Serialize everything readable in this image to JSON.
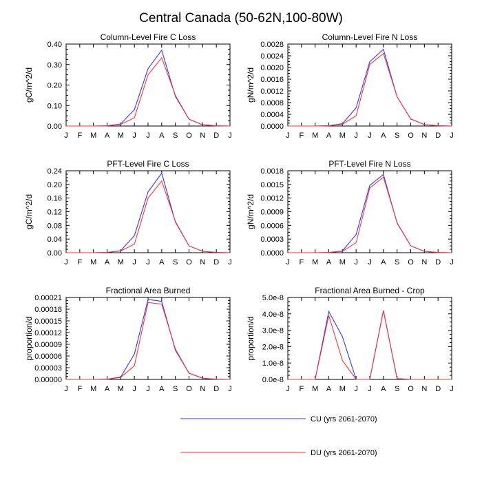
{
  "figure": {
    "title": "Central Canada (50-62N,100-80W)"
  },
  "legend": {
    "entries": [
      {
        "label": "CU (yrs 2061-2070)",
        "color": "#3333ff"
      },
      {
        "label": "DU (yrs 2061-2070)",
        "color": "#ff3333"
      }
    ]
  },
  "chart_data": [
    {
      "type": "line",
      "title": "Column-Level Fire C Loss",
      "ylabel": "gC/m^2/d",
      "xticks": [
        "J",
        "F",
        "M",
        "A",
        "M",
        "J",
        "J",
        "A",
        "S",
        "O",
        "N",
        "D",
        "J"
      ],
      "ylim": [
        0,
        0.4
      ],
      "yticks": [
        "0.00",
        "0.10",
        "0.20",
        "0.30",
        "0.40"
      ],
      "series": [
        {
          "name": "CU (yrs 2061-2070)",
          "color": "#3333ff",
          "values": [
            0,
            0,
            0,
            0.001,
            0.01,
            0.08,
            0.28,
            0.37,
            0.145,
            0.033,
            0.006,
            0.001,
            0
          ]
        },
        {
          "name": "DU (yrs 2061-2070)",
          "color": "#ff3333",
          "values": [
            0,
            0,
            0,
            0.001,
            0.008,
            0.04,
            0.25,
            0.333,
            0.15,
            0.033,
            0.006,
            0.001,
            0
          ]
        }
      ]
    },
    {
      "type": "line",
      "title": "Column-Level Fire N Loss",
      "ylabel": "gN/m^2/d",
      "xticks": [
        "J",
        "F",
        "M",
        "A",
        "M",
        "J",
        "J",
        "A",
        "S",
        "O",
        "N",
        "D",
        "J"
      ],
      "ylim": [
        0,
        0.0028
      ],
      "yticks": [
        "0.0000",
        "0.0004",
        "0.0008",
        "0.0012",
        "0.0016",
        "0.0020",
        "0.0024",
        "0.0028"
      ],
      "series": [
        {
          "name": "CU (yrs 2061-2070)",
          "color": "#3333ff",
          "values": [
            0,
            0,
            0,
            1e-05,
            8e-05,
            0.00062,
            0.0022,
            0.00262,
            0.001,
            0.00024,
            5e-05,
            1e-05,
            0
          ]
        },
        {
          "name": "DU (yrs 2061-2070)",
          "color": "#ff3333",
          "values": [
            0,
            0,
            0,
            1e-05,
            6e-05,
            0.00035,
            0.0021,
            0.00248,
            0.001,
            0.00024,
            5e-05,
            1e-05,
            0
          ]
        }
      ]
    },
    {
      "type": "line",
      "title": "PFT-Level Fire C Loss",
      "ylabel": "gC/m^2/d",
      "xticks": [
        "J",
        "F",
        "M",
        "A",
        "M",
        "J",
        "J",
        "A",
        "S",
        "O",
        "N",
        "D",
        "J"
      ],
      "ylim": [
        0,
        0.24
      ],
      "yticks": [
        "0.00",
        "0.04",
        "0.08",
        "0.12",
        "0.16",
        "0.20",
        "0.24"
      ],
      "series": [
        {
          "name": "CU (yrs 2061-2070)",
          "color": "#3333ff",
          "values": [
            0,
            0,
            0,
            0.001,
            0.006,
            0.05,
            0.178,
            0.233,
            0.09,
            0.02,
            0.004,
            0.001,
            0
          ]
        },
        {
          "name": "DU (yrs 2061-2070)",
          "color": "#ff3333",
          "values": [
            0,
            0,
            0,
            0.001,
            0.005,
            0.025,
            0.16,
            0.21,
            0.092,
            0.02,
            0.004,
            0.001,
            0
          ]
        }
      ]
    },
    {
      "type": "line",
      "title": "PFT-Level Fire N Loss",
      "ylabel": "gN/m^2/d",
      "xticks": [
        "J",
        "F",
        "M",
        "A",
        "M",
        "J",
        "J",
        "A",
        "S",
        "O",
        "N",
        "D",
        "J"
      ],
      "ylim": [
        0,
        0.0018
      ],
      "yticks": [
        "0.0000",
        "0.0003",
        "0.0006",
        "0.0009",
        "0.0012",
        "0.0015",
        "0.0018"
      ],
      "series": [
        {
          "name": "CU (yrs 2061-2070)",
          "color": "#3333ff",
          "values": [
            0,
            0,
            0,
            5e-06,
            4e-05,
            0.0004,
            0.00148,
            0.00172,
            0.00065,
            0.00015,
            3e-05,
            5e-06,
            0
          ]
        },
        {
          "name": "DU (yrs 2061-2070)",
          "color": "#ff3333",
          "values": [
            0,
            0,
            0,
            5e-06,
            3e-05,
            0.00022,
            0.00142,
            0.00166,
            0.00066,
            0.00015,
            3e-05,
            5e-06,
            0
          ]
        }
      ]
    },
    {
      "type": "line",
      "title": "Fractional Area Burned",
      "ylabel": "proportion/d",
      "xticks": [
        "J",
        "F",
        "M",
        "A",
        "M",
        "J",
        "J",
        "A",
        "S",
        "O",
        "N",
        "D",
        "J"
      ],
      "ylim": [
        0,
        0.00021
      ],
      "yticks": [
        "0.00000",
        "0.00003",
        "0.00006",
        "0.00009",
        "0.00012",
        "0.00015",
        "0.00018",
        "0.00021"
      ],
      "series": [
        {
          "name": "CU (yrs 2061-2070)",
          "color": "#3333ff",
          "values": [
            0,
            0,
            0,
            5e-07,
            6e-06,
            6.5e-05,
            0.000205,
            0.0002,
            7.5e-05,
            1.6e-05,
            3e-06,
            5e-07,
            0
          ]
        },
        {
          "name": "DU (yrs 2061-2070)",
          "color": "#ff3333",
          "values": [
            0,
            0,
            0,
            5e-07,
            5e-06,
            3.5e-05,
            0.000197,
            0.000193,
            7.8e-05,
            1.6e-05,
            3e-06,
            5e-07,
            0
          ]
        }
      ]
    },
    {
      "type": "line",
      "title": "Fractional Area Burned - Crop",
      "ylabel": "proportion/d",
      "xticks": [
        "J",
        "F",
        "M",
        "A",
        "M",
        "J",
        "J",
        "A",
        "S",
        "O",
        "N",
        "D",
        "J"
      ],
      "ylim": [
        0,
        5e-08
      ],
      "yticks": [
        "0.0e-8",
        "1.0e-8",
        "2.0e-8",
        "3.0e-8",
        "4.0e-8",
        "5.0e-8"
      ],
      "series": [
        {
          "name": "CU (yrs 2061-2070)",
          "color": "#3333ff",
          "values": [
            0,
            0,
            0,
            4.15e-08,
            2.6e-08,
            0,
            0,
            4.2e-08,
            5e-10,
            0,
            0,
            0,
            0
          ]
        },
        {
          "name": "DU (yrs 2061-2070)",
          "color": "#ff3333",
          "values": [
            0,
            0,
            0,
            3.9e-08,
            1.15e-08,
            0,
            0,
            4.2e-08,
            5e-10,
            0,
            0,
            0,
            0
          ]
        }
      ]
    }
  ]
}
